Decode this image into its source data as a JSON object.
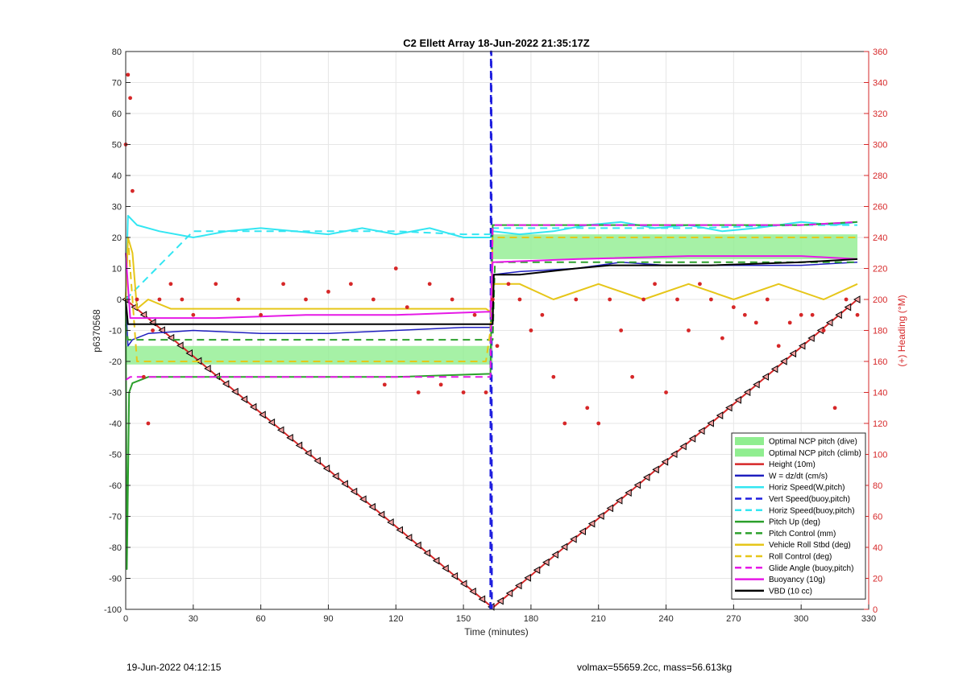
{
  "chart_data": {
    "type": "line",
    "title": "C2 Ellett Array 18-Jun-2022 21:35:17Z",
    "xlabel": "Time (minutes)",
    "ylabel": "p6370568",
    "y2label": "(+) Heading (°M)",
    "xlim": [
      0,
      330
    ],
    "ylim": [
      -100,
      80
    ],
    "y2lim": [
      0,
      360
    ],
    "xticks": [
      0,
      30,
      60,
      90,
      120,
      150,
      180,
      210,
      240,
      270,
      300,
      330
    ],
    "yticks": [
      -100,
      -90,
      -80,
      -70,
      -60,
      -50,
      -40,
      -30,
      -20,
      -10,
      0,
      10,
      20,
      30,
      40,
      50,
      60,
      70,
      80
    ],
    "y2ticks": [
      0,
      20,
      40,
      60,
      80,
      100,
      120,
      140,
      160,
      180,
      200,
      220,
      240,
      260,
      280,
      300,
      320,
      340,
      360
    ],
    "grid": true,
    "legend_position": "bottom-right",
    "apogee_time": 163,
    "bands": [
      {
        "name": "Optimal NCP pitch (dive)",
        "color": "#90ee90",
        "x": [
          0,
          163
        ],
        "y": [
          -21,
          -15
        ]
      },
      {
        "name": "Optimal NCP pitch (climb)",
        "color": "#90ee90",
        "x": [
          163,
          325
        ],
        "y": [
          13,
          21
        ]
      }
    ],
    "series": [
      {
        "name": "Height (10m)",
        "color": "#d62728",
        "style": "solid",
        "width": 2,
        "x": [
          0,
          163,
          325
        ],
        "y": [
          0,
          -99.5,
          0
        ],
        "markers": true
      },
      {
        "name": "W = dz/dt (cm/s)",
        "color": "#1f1fbf",
        "style": "solid",
        "width": 1.5,
        "x": [
          0,
          1,
          3,
          10,
          30,
          60,
          90,
          120,
          150,
          162,
          163,
          175,
          200,
          220,
          240,
          270,
          300,
          325
        ],
        "y": [
          0,
          -15,
          -13,
          -11,
          -10,
          -11,
          -11,
          -10,
          -9,
          -9,
          8,
          9,
          10,
          12,
          11,
          11,
          11,
          12
        ]
      },
      {
        "name": "Horiz Speed(W,pitch)",
        "color": "#33e6f2",
        "style": "solid",
        "width": 2,
        "x": [
          0,
          1,
          5,
          15,
          30,
          45,
          60,
          75,
          90,
          105,
          120,
          135,
          150,
          162,
          163,
          175,
          190,
          205,
          220,
          235,
          250,
          265,
          280,
          300,
          315,
          325
        ],
        "y": [
          0,
          27,
          24,
          22,
          20,
          22,
          23,
          22,
          21,
          23,
          21,
          23,
          20,
          20,
          22,
          21,
          22,
          24,
          25,
          23,
          24,
          22,
          23,
          25,
          24,
          25
        ]
      },
      {
        "name": "Vert Speed(buoy,pitch)",
        "color": "#1f1fdf",
        "style": "dashed",
        "width": 2.5,
        "x": [
          162,
          162.2,
          162.4,
          162.6
        ],
        "y": [
          -100,
          80,
          80,
          -100
        ]
      },
      {
        "name": "Horiz Speed(buoy,pitch)",
        "color": "#33e6f2",
        "style": "dashed",
        "width": 2,
        "x": [
          0,
          30,
          60,
          90,
          120,
          150,
          162,
          163,
          200,
          250,
          300,
          325
        ],
        "y": [
          0,
          22,
          22,
          22,
          22,
          21,
          21,
          23,
          23,
          23,
          24,
          24
        ]
      },
      {
        "name": "Pitch Up (deg)",
        "color": "#2ca02c",
        "style": "solid",
        "width": 2,
        "x": [
          0,
          0.5,
          1,
          1.5,
          3,
          10,
          40,
          80,
          120,
          162,
          163,
          200,
          250,
          300,
          325
        ],
        "y": [
          0,
          -87,
          -60,
          -30,
          -27,
          -25,
          -25,
          -25,
          -25,
          -24,
          24,
          24,
          24,
          24,
          25
        ]
      },
      {
        "name": "Pitch Control (mm)",
        "color": "#2ca02c",
        "style": "dashed",
        "width": 2,
        "x": [
          0,
          1,
          163,
          164,
          325
        ],
        "y": [
          -8,
          -13,
          -13,
          12,
          12
        ]
      },
      {
        "name": "Vehicle Roll Stbd (deg)",
        "color": "#e6c619",
        "style": "solid",
        "width": 2,
        "x": [
          0,
          1,
          3,
          5,
          10,
          20,
          40,
          60,
          80,
          100,
          120,
          140,
          160,
          162,
          163,
          175,
          190,
          210,
          230,
          250,
          270,
          290,
          310,
          325
        ],
        "y": [
          0,
          20,
          15,
          -3,
          0,
          -3,
          -3,
          -3,
          -3,
          -3,
          -3,
          -3,
          -3,
          -4,
          5,
          5,
          0,
          5,
          0,
          5,
          0,
          5,
          0,
          5
        ]
      },
      {
        "name": "Roll Control (deg)",
        "color": "#e6c619",
        "style": "dashed",
        "width": 2,
        "x": [
          0,
          1,
          5,
          40,
          80,
          120,
          160,
          162,
          163,
          200,
          250,
          300,
          325
        ],
        "y": [
          0,
          20,
          -20,
          -20,
          -20,
          -20,
          -20,
          -10,
          20,
          20,
          20,
          20,
          20
        ]
      },
      {
        "name": "Glide Angle (buoy,pitch)",
        "color": "#e619e6",
        "style": "dashed",
        "width": 2,
        "x": [
          0,
          2,
          10,
          40,
          80,
          120,
          162,
          163,
          200,
          250,
          300,
          325
        ],
        "y": [
          -26,
          -25,
          -25,
          -25,
          -25,
          -25,
          -25,
          24,
          24,
          24,
          24,
          25
        ]
      },
      {
        "name": "Buoyancy (10g)",
        "color": "#e619e6",
        "style": "solid",
        "width": 2,
        "x": [
          0,
          2,
          10,
          40,
          80,
          120,
          160,
          162,
          163,
          200,
          250,
          300,
          325
        ],
        "y": [
          15,
          -6,
          -6,
          -6,
          -5,
          -5,
          -4,
          -4,
          12,
          13,
          14,
          14,
          13
        ]
      },
      {
        "name": "VBD (10 cc)",
        "color": "#000000",
        "style": "solid",
        "width": 2,
        "x": [
          0,
          1,
          163,
          163.5,
          175,
          200,
          215,
          260,
          300,
          325
        ],
        "y": [
          0,
          -8,
          -8,
          8,
          8,
          10,
          11,
          11,
          12,
          13
        ]
      }
    ],
    "heading_series": {
      "name": "Heading",
      "color": "#d62728",
      "x": [
        0,
        1,
        2,
        3,
        5,
        8,
        10,
        12,
        15,
        20,
        25,
        30,
        40,
        50,
        60,
        70,
        80,
        90,
        100,
        110,
        115,
        120,
        125,
        130,
        135,
        140,
        145,
        150,
        155,
        160,
        163,
        165,
        170,
        175,
        180,
        185,
        190,
        195,
        200,
        205,
        210,
        215,
        220,
        225,
        230,
        235,
        240,
        245,
        250,
        255,
        260,
        265,
        270,
        275,
        280,
        285,
        290,
        295,
        300,
        305,
        310,
        315,
        320,
        325
      ],
      "y": [
        300,
        345,
        330,
        270,
        200,
        150,
        120,
        180,
        200,
        210,
        200,
        190,
        210,
        200,
        190,
        210,
        200,
        205,
        210,
        200,
        145,
        220,
        195,
        140,
        210,
        145,
        200,
        140,
        190,
        140,
        200,
        170,
        210,
        200,
        180,
        190,
        150,
        120,
        200,
        130,
        120,
        200,
        180,
        150,
        200,
        210,
        140,
        200,
        180,
        210,
        200,
        175,
        195,
        190,
        185,
        200,
        170,
        185,
        190,
        190,
        180,
        130,
        200,
        190
      ]
    }
  },
  "footer": {
    "timestamp": "19-Jun-2022 04:12:15",
    "info": "volmax=55659.2cc, mass=56.613kg"
  }
}
